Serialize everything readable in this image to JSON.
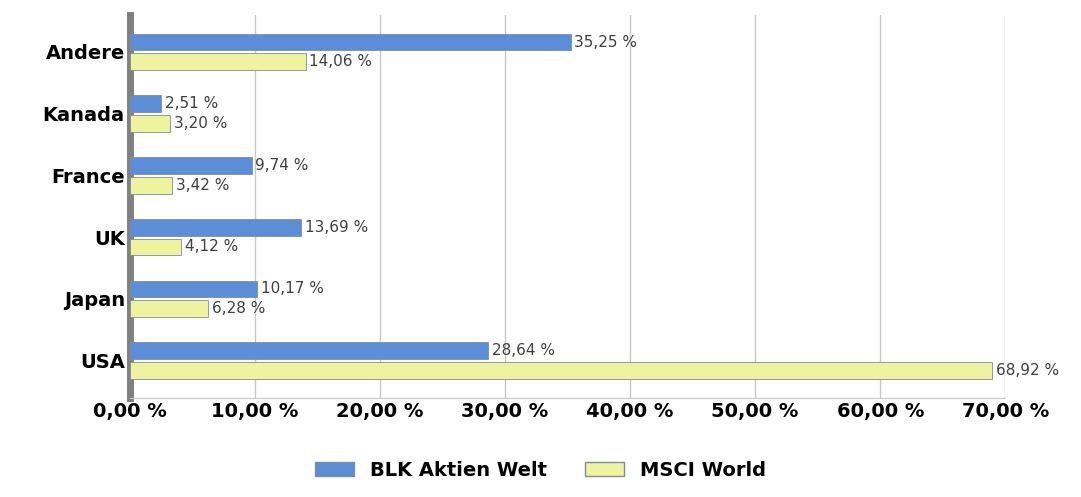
{
  "chart_data": {
    "type": "bar",
    "orientation": "horizontal",
    "categories": [
      "USA",
      "Japan",
      "UK",
      "France",
      "Kanada",
      "Andere"
    ],
    "series": [
      {
        "name": "BLK Aktien Welt",
        "color": "#5b8ed6",
        "values": [
          28.64,
          10.17,
          13.69,
          9.74,
          2.51,
          35.25
        ],
        "value_labels": [
          "28,64 %",
          "10,17 %",
          "13,69 %",
          "9,74 %",
          "2,51 %",
          "35,25 %"
        ]
      },
      {
        "name": "MSCI World",
        "color": "#eef3a0",
        "values": [
          68.92,
          6.28,
          4.12,
          3.42,
          3.2,
          14.06
        ],
        "value_labels": [
          "68,92 %",
          "6,28 %",
          "4,12 %",
          "3,42 %",
          "3,20 %",
          "14,06 %"
        ]
      }
    ],
    "xlim": [
      0,
      70
    ],
    "xticks": [
      {
        "value": 0,
        "label": "0,00 %"
      },
      {
        "value": 10,
        "label": "10,00 %"
      },
      {
        "value": 20,
        "label": "20,00 %"
      },
      {
        "value": 30,
        "label": "30,00 %"
      },
      {
        "value": 40,
        "label": "40,00 %"
      },
      {
        "value": 50,
        "label": "50,00 %"
      },
      {
        "value": 60,
        "label": "60,00 %"
      },
      {
        "value": 70,
        "label": "70,00 %"
      }
    ],
    "grid": true,
    "legend": "lower center",
    "data_labels": true
  }
}
